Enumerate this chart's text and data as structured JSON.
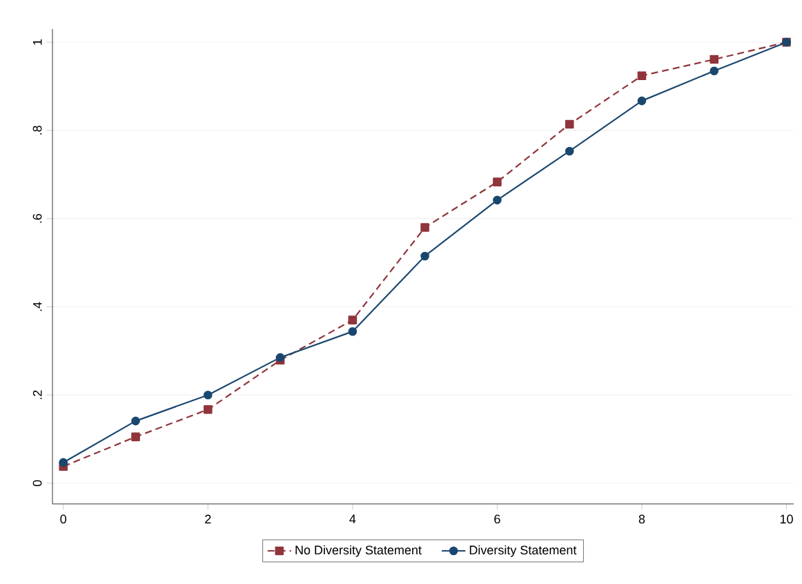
{
  "chart_data": {
    "type": "line",
    "x": [
      0,
      1,
      2,
      3,
      4,
      5,
      6,
      7,
      8,
      9,
      10
    ],
    "series": [
      {
        "name": "No Diversity Statement",
        "color": "#90353b",
        "marker": "square",
        "line_style": "dashed",
        "values": [
          0.038,
          0.105,
          0.167,
          0.279,
          0.37,
          0.58,
          0.683,
          0.814,
          0.924,
          0.961,
          1.0
        ]
      },
      {
        "name": "Diversity Statement",
        "color": "#1a476f",
        "marker": "circle",
        "line_style": "solid",
        "values": [
          0.047,
          0.141,
          0.2,
          0.285,
          0.344,
          0.515,
          0.642,
          0.753,
          0.867,
          0.935,
          1.0
        ]
      }
    ],
    "xlim": [
      -0.15,
      10.1
    ],
    "ylim": [
      -0.047,
      1.03
    ],
    "xticks": [
      0,
      2,
      4,
      6,
      8,
      10
    ],
    "yticks": [
      0,
      {
        "value": 0.2,
        "label": ".2"
      },
      {
        "value": 0.4,
        "label": ".4"
      },
      {
        "value": 0.6,
        "label": ".6"
      },
      {
        "value": 0.8,
        "label": ".8"
      },
      1
    ],
    "grid": "y",
    "legend": "bottom"
  }
}
